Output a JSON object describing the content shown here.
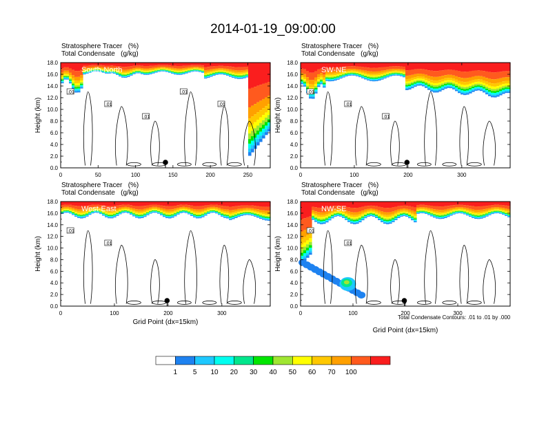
{
  "title": "2014-01-19_09:00:00",
  "variable_line1": "Stratosphere Tracer   (%)",
  "variable_line2": "Total Condensate   (g/kg)",
  "contour_note": "Total Condensate Contours: .01 to .01 by .000",
  "colors": {
    "frame": "#000000",
    "levels": [
      "#ffffff",
      "#1e82f0",
      "#1ec8ff",
      "#00fff0",
      "#00e68c",
      "#00e600",
      "#a0e632",
      "#ffff00",
      "#ffc800",
      "#ffa000",
      "#ff5a1e",
      "#fa1e1e"
    ]
  },
  "chart_data": [
    {
      "type": "heatmap",
      "panel_label": "South-North",
      "xlabel": "",
      "ylabel": "Height (km)",
      "xlim": [
        0,
        280
      ],
      "ylim": [
        0,
        18
      ],
      "xticks": [
        "0",
        "50",
        "100",
        "150",
        "200",
        "250"
      ],
      "yticks": [
        "0.0",
        "2.0",
        "4.0",
        "6.0",
        "8.0",
        "10.0",
        "12.0",
        "14.0",
        "16.0",
        "18.0"
      ],
      "contour_labels": [
        ".01",
        ".01",
        ".01",
        ".01",
        ".01"
      ],
      "location_marker_x": 140
    },
    {
      "type": "heatmap",
      "panel_label": "SW-NE",
      "xlabel": "",
      "ylabel": "Height (km)",
      "xlim": [
        0,
        390
      ],
      "ylim": [
        0,
        18
      ],
      "xticks": [
        "0",
        "100",
        "200",
        "300"
      ],
      "yticks": [
        "0.0",
        "2.0",
        "4.0",
        "6.0",
        "8.0",
        "10.0",
        "12.0",
        "14.0",
        "16.0",
        "18.0"
      ],
      "contour_labels": [
        ".01",
        ".01",
        ".01"
      ],
      "location_marker_x": 198
    },
    {
      "type": "heatmap",
      "panel_label": "West-East",
      "xlabel": "Grid Point (dx=15km)",
      "ylabel": "Height (km)",
      "xlim": [
        0,
        390
      ],
      "ylim": [
        0,
        18
      ],
      "xticks": [
        "0",
        "100",
        "200",
        "300"
      ],
      "yticks": [
        "0.0",
        "2.0",
        "4.0",
        "6.0",
        "8.0",
        "10.0",
        "12.0",
        "14.0",
        "16.0",
        "18.0"
      ],
      "contour_labels": [
        ".01",
        ".01"
      ],
      "location_marker_x": 198
    },
    {
      "type": "heatmap",
      "panel_label": "NW-SE",
      "xlabel": "Grid Point (dx=15km)",
      "ylabel": "Height (km)",
      "xlim": [
        0,
        400
      ],
      "ylim": [
        0,
        18
      ],
      "xticks": [
        "0",
        "100",
        "200",
        "300"
      ],
      "yticks": [
        "0.0",
        "2.0",
        "4.0",
        "6.0",
        "8.0",
        "10.0",
        "12.0",
        "14.0",
        "16.0",
        "18.0"
      ],
      "contour_labels": [
        ".01",
        ".01"
      ],
      "location_marker_x": 198
    }
  ],
  "colorbar_labels": [
    "1",
    "5",
    "10",
    "20",
    "30",
    "40",
    "50",
    "60",
    "70",
    "100"
  ]
}
